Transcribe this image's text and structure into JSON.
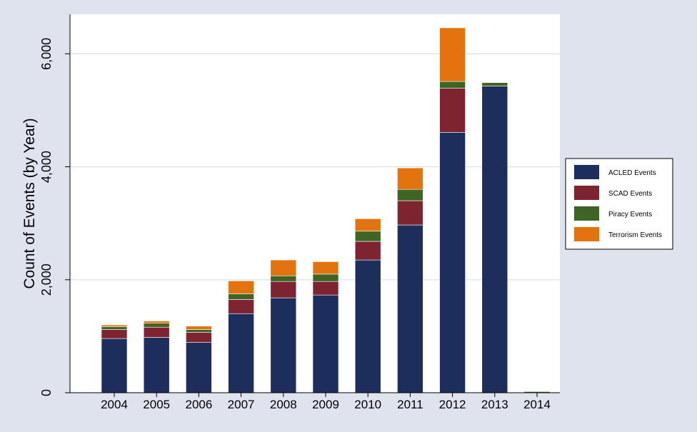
{
  "chart_data": {
    "type": "bar",
    "stacked": true,
    "title": "",
    "xlabel": "",
    "ylabel": "Count of Events (by Year)",
    "ylim": [
      0,
      6700
    ],
    "y_ticks": [
      0,
      2000,
      4000,
      6000
    ],
    "y_tick_labels": [
      "0",
      "2,000",
      "4,000",
      "6,000"
    ],
    "categories": [
      "2004",
      "2005",
      "2006",
      "2007",
      "2008",
      "2009",
      "2010",
      "2011",
      "2012",
      "2013",
      "2014"
    ],
    "grid": true,
    "legend_position": "right",
    "series": [
      {
        "name": "ACLED Events",
        "color": "#1d2d5c",
        "values": [
          960,
          980,
          890,
          1400,
          1680,
          1730,
          2350,
          2970,
          4610,
          5430,
          0
        ]
      },
      {
        "name": "SCAD Events",
        "color": "#7d2430",
        "values": [
          160,
          180,
          180,
          250,
          290,
          240,
          330,
          430,
          780,
          0,
          0
        ]
      },
      {
        "name": "Piracy Events",
        "color": "#3f6525",
        "values": [
          50,
          70,
          50,
          100,
          100,
          130,
          180,
          200,
          120,
          60,
          20
        ]
      },
      {
        "name": "Terrorism Events",
        "color": "#e3730f",
        "values": [
          30,
          40,
          60,
          230,
          280,
          220,
          220,
          380,
          950,
          0,
          0
        ]
      }
    ]
  }
}
